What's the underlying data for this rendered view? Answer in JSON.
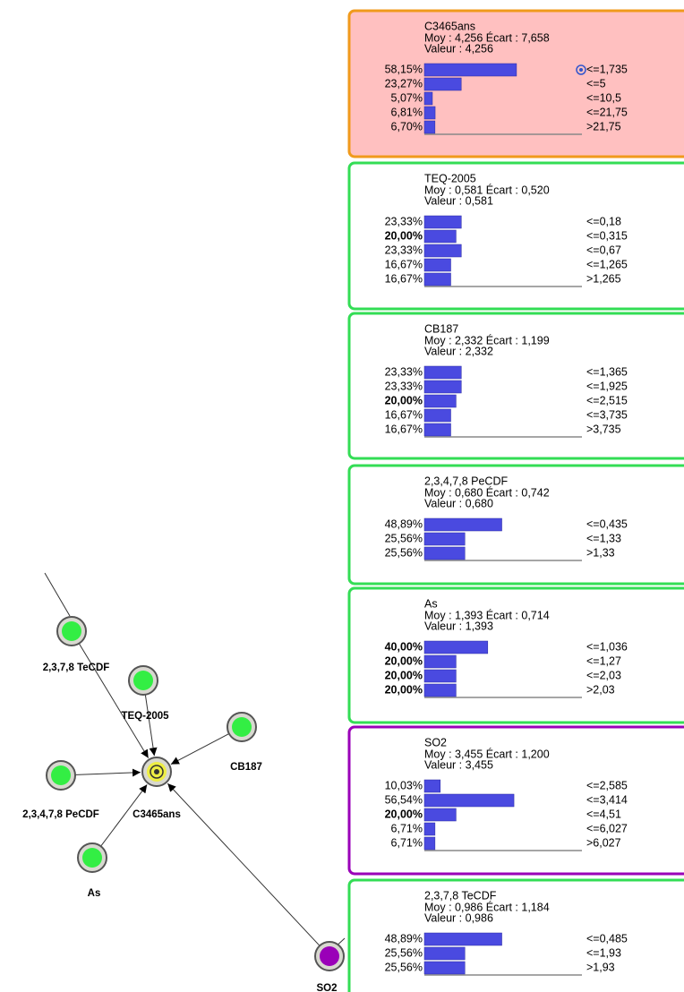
{
  "panels": [
    {
      "title": "C3465ans",
      "stats": "Moy : 4,256 Écart : 7,658",
      "value": "Valeur : 4,256",
      "border": "#f09a1c",
      "fill": "#ffc0c0",
      "rows": [
        {
          "pct": 58.15,
          "pct_label": "58,15%",
          "state": "<=1,735",
          "bold": false
        },
        {
          "pct": 23.27,
          "pct_label": "23,27%",
          "state": "<=5",
          "bold": false
        },
        {
          "pct": 5.07,
          "pct_label": "5,07%",
          "state": "<=10,5",
          "bold": false
        },
        {
          "pct": 6.81,
          "pct_label": "6,81%",
          "state": "<=21,75",
          "bold": false
        },
        {
          "pct": 6.7,
          "pct_label": "6,70%",
          "state": ">21,75",
          "bold": false
        }
      ]
    },
    {
      "title": "TEQ-2005",
      "stats": "Moy : 0,581 Écart : 0,520",
      "value": "Valeur : 0,581",
      "border": "#33dd55",
      "fill": "#ffffff",
      "rows": [
        {
          "pct": 23.33,
          "pct_label": "23,33%",
          "state": "<=0,18",
          "bold": false
        },
        {
          "pct": 20.0,
          "pct_label": "20,00%",
          "state": "<=0,315",
          "bold": true
        },
        {
          "pct": 23.33,
          "pct_label": "23,33%",
          "state": "<=0,67",
          "bold": false
        },
        {
          "pct": 16.67,
          "pct_label": "16,67%",
          "state": "<=1,265",
          "bold": false
        },
        {
          "pct": 16.67,
          "pct_label": "16,67%",
          "state": ">1,265",
          "bold": false
        }
      ]
    },
    {
      "title": "CB187",
      "stats": "Moy : 2,332 Écart : 1,199",
      "value": "Valeur : 2,332",
      "border": "#33dd55",
      "fill": "#ffffff",
      "rows": [
        {
          "pct": 23.33,
          "pct_label": "23,33%",
          "state": "<=1,365",
          "bold": false
        },
        {
          "pct": 23.33,
          "pct_label": "23,33%",
          "state": "<=1,925",
          "bold": false
        },
        {
          "pct": 20.0,
          "pct_label": "20,00%",
          "state": "<=2,515",
          "bold": true
        },
        {
          "pct": 16.67,
          "pct_label": "16,67%",
          "state": "<=3,735",
          "bold": false
        },
        {
          "pct": 16.67,
          "pct_label": "16,67%",
          "state": ">3,735",
          "bold": false
        }
      ]
    },
    {
      "title": "2,3,4,7,8 PeCDF",
      "stats": "Moy : 0,680 Écart : 0,742",
      "value": "Valeur : 0,680",
      "border": "#33dd55",
      "fill": "#ffffff",
      "rows": [
        {
          "pct": 48.89,
          "pct_label": "48,89%",
          "state": "<=0,435",
          "bold": false
        },
        {
          "pct": 25.56,
          "pct_label": "25,56%",
          "state": "<=1,33",
          "bold": false
        },
        {
          "pct": 25.56,
          "pct_label": "25,56%",
          "state": ">1,33",
          "bold": false
        }
      ]
    },
    {
      "title": "As",
      "stats": "Moy : 1,393 Écart : 0,714",
      "value": "Valeur : 1,393",
      "border": "#33dd55",
      "fill": "#ffffff",
      "rows": [
        {
          "pct": 40.0,
          "pct_label": "40,00%",
          "state": "<=1,036",
          "bold": true
        },
        {
          "pct": 20.0,
          "pct_label": "20,00%",
          "state": "<=1,27",
          "bold": true
        },
        {
          "pct": 20.0,
          "pct_label": "20,00%",
          "state": "<=2,03",
          "bold": true
        },
        {
          "pct": 20.0,
          "pct_label": "20,00%",
          "state": ">2,03",
          "bold": true
        }
      ]
    },
    {
      "title": "SO2",
      "stats": "Moy : 3,455 Écart : 1,200",
      "value": "Valeur : 3,455",
      "border": "#9a00b8",
      "fill": "#ffffff",
      "rows": [
        {
          "pct": 10.03,
          "pct_label": "10,03%",
          "state": "<=2,585",
          "bold": false
        },
        {
          "pct": 56.54,
          "pct_label": "56,54%",
          "state": "<=3,414",
          "bold": false
        },
        {
          "pct": 20.0,
          "pct_label": "20,00%",
          "state": "<=4,51",
          "bold": true
        },
        {
          "pct": 6.71,
          "pct_label": "6,71%",
          "state": "<=6,027",
          "bold": false
        },
        {
          "pct": 6.71,
          "pct_label": "6,71%",
          "state": ">6,027",
          "bold": false
        }
      ]
    },
    {
      "title": "2,3,7,8 TeCDF",
      "stats": "Moy : 0,986 Écart : 1,184",
      "value": "Valeur : 0,986",
      "border": "#33dd55",
      "fill": "#ffffff",
      "rows": [
        {
          "pct": 48.89,
          "pct_label": "48,89%",
          "state": "<=0,485",
          "bold": false
        },
        {
          "pct": 25.56,
          "pct_label": "25,56%",
          "state": "<=1,93",
          "bold": false
        },
        {
          "pct": 25.56,
          "pct_label": "25,56%",
          "state": ">1,93",
          "bold": false
        }
      ]
    }
  ],
  "graph": {
    "nodes": [
      {
        "label": "2,3,7,8 TeCDF",
        "color": "#33ee44"
      },
      {
        "label": "TEQ-2005",
        "color": "#33ee44"
      },
      {
        "label": "CB187",
        "color": "#33ee44"
      },
      {
        "label": "2,3,4,7,8 PeCDF",
        "color": "#33ee44"
      },
      {
        "label": "C3465ans",
        "color": "#eeee44"
      },
      {
        "label": "As",
        "color": "#33ee44"
      },
      {
        "label": "SO2",
        "color": "#9a00b8"
      }
    ]
  }
}
